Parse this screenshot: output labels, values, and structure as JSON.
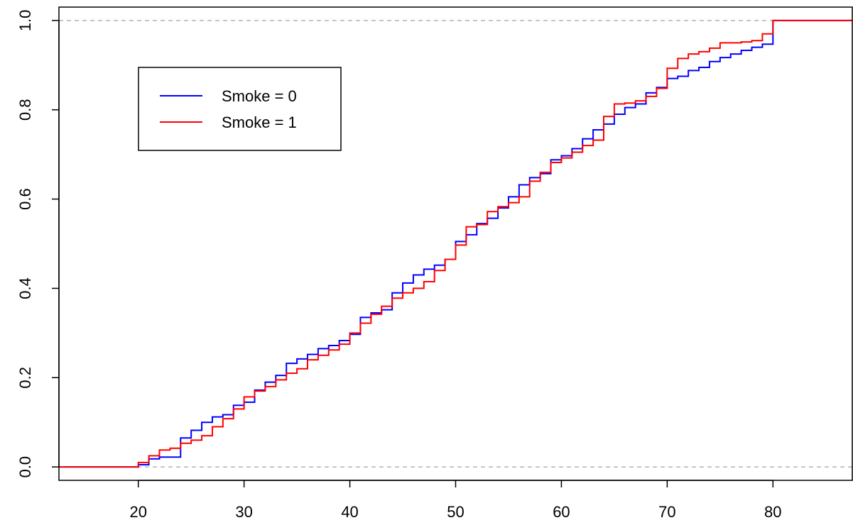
{
  "chart_data": {
    "type": "line",
    "step": true,
    "title": "",
    "xlabel": "",
    "ylabel": "",
    "xlim": [
      12.5,
      87.5
    ],
    "ylim": [
      -0.03,
      1.03
    ],
    "xticks": [
      20,
      30,
      40,
      50,
      60,
      70,
      80
    ],
    "xtick_labels": [
      "20",
      "30",
      "40",
      "50",
      "60",
      "70",
      "80"
    ],
    "yticks": [
      0.0,
      0.2,
      0.4,
      0.6,
      0.8,
      1.0
    ],
    "ytick_labels": [
      "0.0",
      "0.2",
      "0.4",
      "0.6",
      "0.8",
      "1.0"
    ],
    "reference_lines": [
      0,
      1
    ],
    "grid": false,
    "legend": {
      "position": "top-left",
      "entries": [
        "Smoke = 0",
        "Smoke = 1"
      ]
    },
    "series": [
      {
        "name": "Smoke = 0",
        "color": "#0000ff",
        "points": [
          [
            12.5,
            0.0
          ],
          [
            20,
            0.005
          ],
          [
            21,
            0.018
          ],
          [
            22,
            0.022
          ],
          [
            24,
            0.065
          ],
          [
            25,
            0.082
          ],
          [
            26,
            0.1
          ],
          [
            27,
            0.112
          ],
          [
            28,
            0.117
          ],
          [
            29,
            0.138
          ],
          [
            30,
            0.145
          ],
          [
            31,
            0.172
          ],
          [
            32,
            0.19
          ],
          [
            33,
            0.205
          ],
          [
            34,
            0.232
          ],
          [
            35,
            0.242
          ],
          [
            36,
            0.252
          ],
          [
            37,
            0.265
          ],
          [
            38,
            0.272
          ],
          [
            39,
            0.283
          ],
          [
            40,
            0.297
          ],
          [
            41,
            0.335
          ],
          [
            42,
            0.345
          ],
          [
            43,
            0.352
          ],
          [
            44,
            0.39
          ],
          [
            45,
            0.412
          ],
          [
            46,
            0.43
          ],
          [
            47,
            0.443
          ],
          [
            48,
            0.452
          ],
          [
            49,
            0.465
          ],
          [
            50,
            0.505
          ],
          [
            51,
            0.52
          ],
          [
            52,
            0.545
          ],
          [
            53,
            0.557
          ],
          [
            54,
            0.58
          ],
          [
            55,
            0.605
          ],
          [
            56,
            0.632
          ],
          [
            57,
            0.648
          ],
          [
            58,
            0.657
          ],
          [
            59,
            0.688
          ],
          [
            60,
            0.697
          ],
          [
            61,
            0.713
          ],
          [
            62,
            0.735
          ],
          [
            63,
            0.755
          ],
          [
            64,
            0.768
          ],
          [
            65,
            0.79
          ],
          [
            66,
            0.805
          ],
          [
            67,
            0.813
          ],
          [
            68,
            0.838
          ],
          [
            69,
            0.85
          ],
          [
            70,
            0.87
          ],
          [
            71,
            0.875
          ],
          [
            72,
            0.888
          ],
          [
            73,
            0.895
          ],
          [
            74,
            0.908
          ],
          [
            75,
            0.917
          ],
          [
            76,
            0.925
          ],
          [
            77,
            0.933
          ],
          [
            78,
            0.94
          ],
          [
            79,
            0.947
          ],
          [
            80,
            1.0
          ],
          [
            87.5,
            1.0
          ]
        ]
      },
      {
        "name": "Smoke = 1",
        "color": "#ff0000",
        "points": [
          [
            12.5,
            0.0
          ],
          [
            20,
            0.01
          ],
          [
            21,
            0.025
          ],
          [
            22,
            0.038
          ],
          [
            23,
            0.042
          ],
          [
            24,
            0.053
          ],
          [
            25,
            0.06
          ],
          [
            26,
            0.07
          ],
          [
            27,
            0.09
          ],
          [
            28,
            0.108
          ],
          [
            29,
            0.13
          ],
          [
            30,
            0.157
          ],
          [
            31,
            0.17
          ],
          [
            32,
            0.18
          ],
          [
            33,
            0.195
          ],
          [
            34,
            0.21
          ],
          [
            35,
            0.22
          ],
          [
            36,
            0.24
          ],
          [
            37,
            0.25
          ],
          [
            38,
            0.262
          ],
          [
            39,
            0.275
          ],
          [
            40,
            0.3
          ],
          [
            41,
            0.322
          ],
          [
            42,
            0.342
          ],
          [
            43,
            0.36
          ],
          [
            44,
            0.378
          ],
          [
            45,
            0.39
          ],
          [
            46,
            0.4
          ],
          [
            47,
            0.415
          ],
          [
            48,
            0.44
          ],
          [
            49,
            0.465
          ],
          [
            50,
            0.497
          ],
          [
            51,
            0.538
          ],
          [
            52,
            0.543
          ],
          [
            53,
            0.572
          ],
          [
            54,
            0.583
          ],
          [
            55,
            0.592
          ],
          [
            56,
            0.605
          ],
          [
            57,
            0.64
          ],
          [
            58,
            0.66
          ],
          [
            59,
            0.682
          ],
          [
            60,
            0.692
          ],
          [
            61,
            0.705
          ],
          [
            62,
            0.72
          ],
          [
            63,
            0.732
          ],
          [
            64,
            0.785
          ],
          [
            65,
            0.813
          ],
          [
            66,
            0.815
          ],
          [
            67,
            0.82
          ],
          [
            68,
            0.83
          ],
          [
            69,
            0.848
          ],
          [
            70,
            0.893
          ],
          [
            71,
            0.915
          ],
          [
            72,
            0.925
          ],
          [
            73,
            0.93
          ],
          [
            74,
            0.938
          ],
          [
            75,
            0.95
          ],
          [
            77,
            0.952
          ],
          [
            78,
            0.955
          ],
          [
            79,
            0.97
          ],
          [
            80,
            1.0
          ],
          [
            87.5,
            1.0
          ]
        ]
      }
    ]
  }
}
